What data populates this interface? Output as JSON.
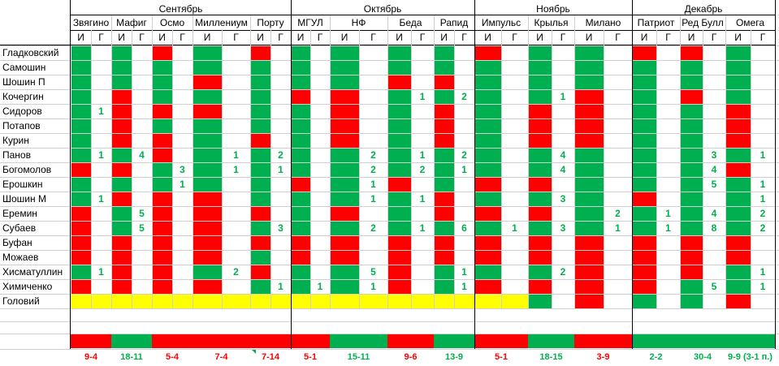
{
  "colors": {
    "green": "#00b050",
    "red": "#ff0000",
    "yellow": "#ffff00"
  },
  "months": [
    "Сентябрь",
    "Октябрь",
    "Ноябрь",
    "Декабрь"
  ],
  "teams": [
    "Звягино",
    "Мафиг",
    "Осмо",
    "Миллениум",
    "Порту",
    "МГУЛ",
    "НФ",
    "Беда",
    "Рапид",
    "Импульс",
    "Крылья",
    "Милано",
    "Патриот",
    "Ред Булл",
    "Омега"
  ],
  "sub_labels": {
    "games": "И",
    "goals": "Г"
  },
  "players": [
    {
      "name": "Гладковский",
      "games": [
        "g",
        "g",
        "r",
        "g",
        "r",
        "g",
        "g",
        "g",
        "g",
        "r",
        "g",
        "g",
        "r",
        "r",
        "g"
      ],
      "goals": [
        "",
        "",
        "",
        "",
        "",
        "",
        "",
        "",
        "",
        "",
        "",
        "",
        "",
        "",
        ""
      ]
    },
    {
      "name": "Самошин",
      "games": [
        "g",
        "g",
        "g",
        "g",
        "g",
        "g",
        "g",
        "g",
        "g",
        "g",
        "g",
        "g",
        "g",
        "g",
        "g"
      ],
      "goals": [
        "",
        "",
        "",
        "",
        "",
        "",
        "",
        "",
        "",
        "",
        "",
        "",
        "",
        "",
        ""
      ]
    },
    {
      "name": "Шошин П",
      "games": [
        "g",
        "g",
        "g",
        "r",
        "g",
        "g",
        "g",
        "r",
        "r",
        "g",
        "g",
        "g",
        "g",
        "g",
        "g"
      ],
      "goals": [
        "",
        "",
        "",
        "",
        "",
        "",
        "",
        "",
        "",
        "",
        "",
        "",
        "",
        "",
        ""
      ]
    },
    {
      "name": "Кочергин",
      "games": [
        "g",
        "r",
        "g",
        "g",
        "g",
        "r",
        "r",
        "g",
        "g",
        "g",
        "g",
        "r",
        "g",
        "r",
        "g"
      ],
      "goals": [
        "",
        "",
        "",
        "",
        "",
        "",
        "",
        "1",
        "2",
        "",
        "1",
        "",
        "",
        "",
        ""
      ]
    },
    {
      "name": "Сидоров",
      "games": [
        "g",
        "r",
        "r",
        "r",
        "g",
        "g",
        "r",
        "g",
        "r",
        "g",
        "r",
        "r",
        "g",
        "g",
        "r"
      ],
      "goals": [
        "1",
        "",
        "",
        "",
        "",
        "",
        "",
        "",
        "",
        "",
        "",
        "",
        "",
        "",
        ""
      ]
    },
    {
      "name": "Потапов",
      "games": [
        "g",
        "r",
        "g",
        "g",
        "g",
        "g",
        "r",
        "g",
        "r",
        "g",
        "r",
        "r",
        "g",
        "g",
        "r"
      ],
      "goals": [
        "",
        "",
        "",
        "",
        "",
        "",
        "",
        "",
        "",
        "",
        "",
        "",
        "",
        "",
        ""
      ]
    },
    {
      "name": "Курин",
      "games": [
        "g",
        "r",
        "r",
        "g",
        "r",
        "g",
        "r",
        "g",
        "r",
        "g",
        "r",
        "r",
        "g",
        "g",
        "r"
      ],
      "goals": [
        "",
        "",
        "",
        "",
        "",
        "",
        "",
        "",
        "",
        "",
        "",
        "",
        "",
        "",
        ""
      ]
    },
    {
      "name": "Панов",
      "games": [
        "g",
        "g",
        "r",
        "g",
        "g",
        "g",
        "g",
        "g",
        "g",
        "g",
        "g",
        "g",
        "g",
        "g",
        "g"
      ],
      "goals": [
        "1",
        "4",
        "",
        "1",
        "2",
        "",
        "2",
        "1",
        "2",
        "",
        "4",
        "",
        "",
        "3",
        "1"
      ]
    },
    {
      "name": "Богомолов",
      "games": [
        "r",
        "r",
        "g",
        "g",
        "g",
        "g",
        "g",
        "g",
        "g",
        "g",
        "g",
        "g",
        "g",
        "g",
        "r"
      ],
      "goals": [
        "",
        "",
        "3",
        "1",
        "1",
        "",
        "2",
        "2",
        "1",
        "",
        "4",
        "",
        "",
        "4",
        ""
      ]
    },
    {
      "name": "Ерошкин",
      "games": [
        "g",
        "g",
        "g",
        "g",
        "g",
        "r",
        "g",
        "r",
        "g",
        "r",
        "r",
        "g",
        "g",
        "g",
        "g"
      ],
      "goals": [
        "",
        "",
        "1",
        "",
        "",
        "",
        "1",
        "",
        "",
        "",
        "",
        "",
        "",
        "5",
        "1"
      ]
    },
    {
      "name": "Шошин М",
      "games": [
        "g",
        "r",
        "r",
        "r",
        "g",
        "g",
        "g",
        "g",
        "r",
        "g",
        "g",
        "g",
        "r",
        "g",
        "g"
      ],
      "goals": [
        "1",
        "",
        "",
        "",
        "",
        "",
        "1",
        "1",
        "",
        "",
        "3",
        "",
        "",
        "",
        "1"
      ]
    },
    {
      "name": "Еремин",
      "games": [
        "r",
        "g",
        "r",
        "r",
        "r",
        "g",
        "r",
        "g",
        "r",
        "r",
        "r",
        "g",
        "g",
        "g",
        "g"
      ],
      "goals": [
        "",
        "5",
        "",
        "",
        "",
        "",
        "",
        "",
        "",
        "",
        "",
        "2",
        "1",
        "4",
        "2"
      ]
    },
    {
      "name": "Субаев",
      "games": [
        "r",
        "g",
        "r",
        "r",
        "g",
        "g",
        "g",
        "g",
        "g",
        "g",
        "g",
        "g",
        "g",
        "g",
        "g"
      ],
      "goals": [
        "",
        "5",
        "",
        "",
        "3",
        "",
        "2",
        "1",
        "6",
        "1",
        "3",
        "1",
        "1",
        "8",
        "2"
      ]
    },
    {
      "name": "Буфан",
      "games": [
        "r",
        "r",
        "r",
        "r",
        "r",
        "r",
        "r",
        "r",
        "r",
        "r",
        "r",
        "r",
        "r",
        "r",
        "r"
      ],
      "goals": [
        "",
        "",
        "",
        "",
        "",
        "",
        "",
        "",
        "",
        "",
        "",
        "",
        "",
        "",
        ""
      ]
    },
    {
      "name": "Можаев",
      "games": [
        "r",
        "r",
        "r",
        "r",
        "g",
        "r",
        "r",
        "r",
        "r",
        "r",
        "r",
        "r",
        "r",
        "r",
        "r"
      ],
      "goals": [
        "",
        "",
        "",
        "",
        "",
        "",
        "",
        "",
        "",
        "",
        "",
        "",
        "",
        "",
        ""
      ]
    },
    {
      "name": "Хисматуллин",
      "games": [
        "g",
        "r",
        "r",
        "g",
        "r",
        "g",
        "g",
        "r",
        "g",
        "g",
        "g",
        "r",
        "r",
        "r",
        "g"
      ],
      "goals": [
        "1",
        "",
        "",
        "2",
        "",
        "",
        "5",
        "",
        "1",
        "",
        "2",
        "",
        "",
        "",
        "1"
      ]
    },
    {
      "name": "Химиченко",
      "games": [
        "r",
        "r",
        "r",
        "r",
        "g",
        "g",
        "g",
        "r",
        "g",
        "r",
        "r",
        "r",
        "r",
        "g",
        "g"
      ],
      "goals": [
        "",
        "",
        "",
        "",
        "1",
        "1",
        "1",
        "",
        "1",
        "",
        "",
        "",
        "",
        "5",
        "1"
      ]
    },
    {
      "name": "Головий",
      "games": [
        "y",
        "y",
        "y",
        "y",
        "y",
        "y",
        "y",
        "y",
        "y",
        "y",
        "g",
        "r",
        "g",
        "g",
        "r"
      ],
      "goals": [
        "",
        "",
        "",
        "",
        "",
        "",
        "",
        "",
        "",
        "",
        "",
        "",
        "",
        "",
        ""
      ]
    }
  ],
  "results": [
    {
      "score": "9-4",
      "color": "red"
    },
    {
      "score": "18-11",
      "color": "green"
    },
    {
      "score": "5-4",
      "color": "red"
    },
    {
      "score": "7-4",
      "color": "red"
    },
    {
      "score": "7-14",
      "color": "red"
    },
    {
      "score": "5-1",
      "color": "red"
    },
    {
      "score": "15-11",
      "color": "green"
    },
    {
      "score": "9-6",
      "color": "red"
    },
    {
      "score": "13-9",
      "color": "green"
    },
    {
      "score": "5-1",
      "color": "red"
    },
    {
      "score": "18-15",
      "color": "green"
    },
    {
      "score": "3-9",
      "color": "red"
    },
    {
      "score": "2-2",
      "color": "green"
    },
    {
      "score": "30-4",
      "color": "green"
    },
    {
      "score": "9-9 (3-1 п.)",
      "color": "green"
    }
  ]
}
